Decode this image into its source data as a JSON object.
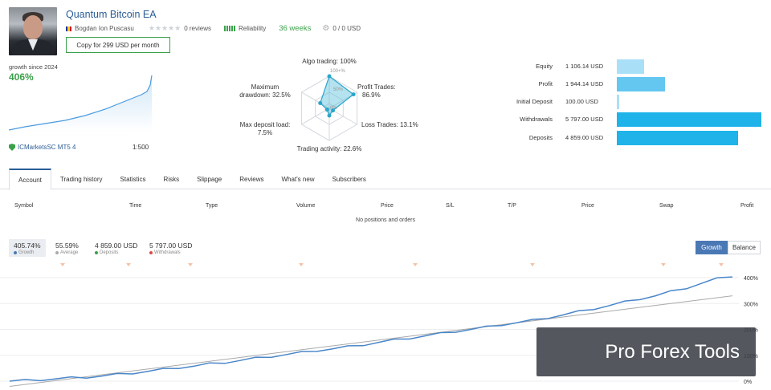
{
  "header": {
    "title": "Quantum Bitcoin EA",
    "author": "Bogdan Ion Puscasu",
    "reviews": "0 reviews",
    "reliability_label": "Reliability",
    "weeks": "36 weeks",
    "subscribers_funds": "0 / 0 USD",
    "copy_button": "Copy for 299 USD per month",
    "rating_stars": 0
  },
  "summary": {
    "growth_since": "growth since 2024",
    "growth_value": "406%",
    "broker": "ICMarketsSC MT5 4",
    "leverage": "1:500"
  },
  "radar": {
    "labels": {
      "algo": "Algo trading: 100%",
      "algo_ring": "100+%",
      "profit_trades": [
        "Profit Trades:",
        "86.9%"
      ],
      "loss_trades": "Loss Trades: 13.1%",
      "activity": "Trading activity: 22.6%",
      "deposit_load": [
        "Max deposit load:",
        "7.5%"
      ],
      "drawdown": [
        "Maximum",
        "drawdown: 32.5%"
      ],
      "ring_mid": "50%",
      "ring_low": "0%"
    },
    "values": {
      "algo": 100,
      "profit_trades": 86.9,
      "loss_trades": 13.1,
      "activity": 22.6,
      "deposit_load": 7.5,
      "drawdown": 32.5
    }
  },
  "balance_bars": [
    {
      "label": "Equity",
      "value": "1 106.14 USD",
      "amount": 1106.14,
      "color": "#a9e0f7"
    },
    {
      "label": "Profit",
      "value": "1 944.14 USD",
      "amount": 1944.14,
      "color": "#63c7f0"
    },
    {
      "label": "Initial Deposit",
      "value": "100.00 USD",
      "amount": 100.0,
      "color": "#a9e0f7"
    },
    {
      "label": "Withdrawals",
      "value": "5 797.00 USD",
      "amount": 5797.0,
      "color": "#1fb3ea"
    },
    {
      "label": "Deposits",
      "value": "4 859.00 USD",
      "amount": 4859.0,
      "color": "#1fb3ea"
    }
  ],
  "tabs": [
    "Account",
    "Trading history",
    "Statistics",
    "Risks",
    "Slippage",
    "Reviews",
    "What's new",
    "Subscribers"
  ],
  "table": {
    "columns": [
      "Symbol",
      "Time",
      "Type",
      "Volume",
      "Price",
      "S/L",
      "T/P",
      "Price",
      "Swap",
      "Profit"
    ],
    "empty_text": "No positions and orders"
  },
  "stats": [
    {
      "value": "405.74%",
      "label": "Growth",
      "color": "#4a78b5"
    },
    {
      "value": "55.59%",
      "label": "Average",
      "color": "#aaaaaa"
    },
    {
      "value": "4 859.00 USD",
      "label": "Deposits",
      "color": "#3aa14a"
    },
    {
      "value": "5 797.00 USD",
      "label": "Withdrawals",
      "color": "#e04a4a"
    }
  ],
  "chart_toggle": {
    "growth": "Growth",
    "balance": "Balance"
  },
  "chart_data": {
    "type": "line",
    "y_tick_labels": [
      "400%",
      "300%",
      "200%",
      "100%",
      "0%"
    ],
    "ylim": [
      0,
      400
    ],
    "series": [
      {
        "values": [
          0,
          2,
          5,
          9,
          12,
          15,
          20,
          25,
          31,
          38,
          45,
          52,
          58,
          66,
          72,
          80,
          88,
          95,
          103,
          110,
          118,
          125,
          132,
          140,
          150,
          158,
          166,
          175,
          183,
          192,
          200,
          208,
          218,
          226,
          234,
          245,
          256,
          268,
          280,
          292,
          305,
          318,
          330,
          345,
          360,
          378,
          395,
          406
        ],
        "color": "#4a86c8"
      },
      {
        "values": [
          -20,
          330
        ],
        "color": "#aaaaaa"
      }
    ]
  },
  "watermark": "Pro Forex Tools"
}
